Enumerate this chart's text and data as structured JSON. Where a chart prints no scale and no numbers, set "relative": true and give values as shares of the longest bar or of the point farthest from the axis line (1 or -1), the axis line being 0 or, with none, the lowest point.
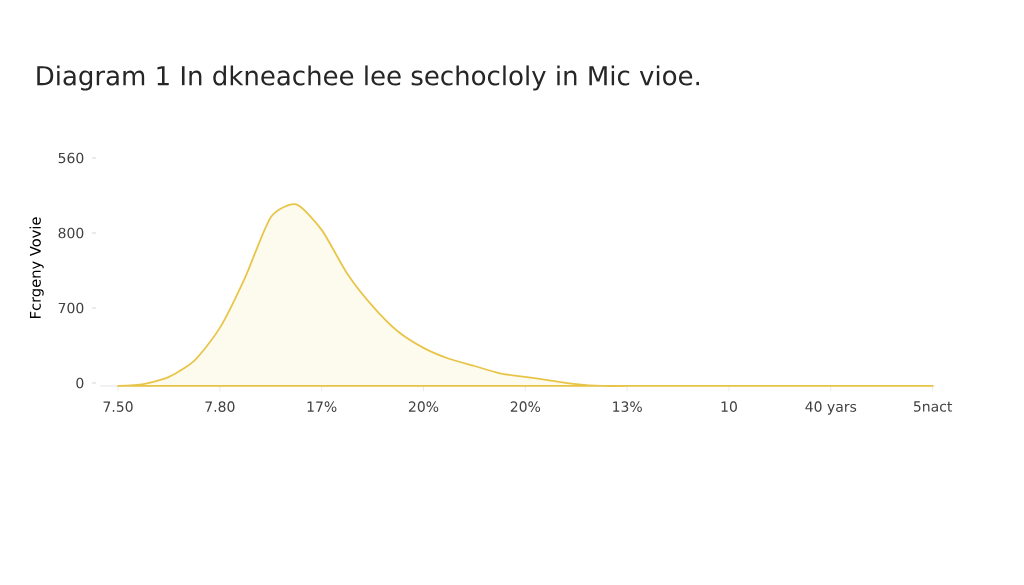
{
  "chart_data": {
    "type": "area",
    "title": "Diagram 1 In dkneachee lee sechocloly in Mic vioe.",
    "ylabel": "Fcrgeny Vovie",
    "relative": true,
    "categories": [
      "7.50",
      null,
      null,
      null,
      "7.80",
      null,
      null,
      null,
      "17%",
      null,
      null,
      null,
      "20%",
      null,
      null,
      null,
      "20%",
      null,
      null,
      null,
      "13%",
      null,
      null,
      null,
      "10",
      null,
      null,
      null,
      "40 yars",
      null,
      null,
      null,
      "5nact"
    ],
    "values": [
      0,
      0.01,
      0.05,
      0.14,
      0.32,
      0.6,
      0.93,
      1,
      0.86,
      0.62,
      0.44,
      0.3,
      0.21,
      0.15,
      0.11,
      0.07,
      0.05,
      0.03,
      0.01,
      0,
      0,
      0,
      0,
      0,
      0,
      0,
      0,
      0,
      0,
      0,
      0,
      0,
      0
    ],
    "color": "#e8c547",
    "annotations": [
      "560",
      "800",
      "700",
      "0"
    ]
  }
}
